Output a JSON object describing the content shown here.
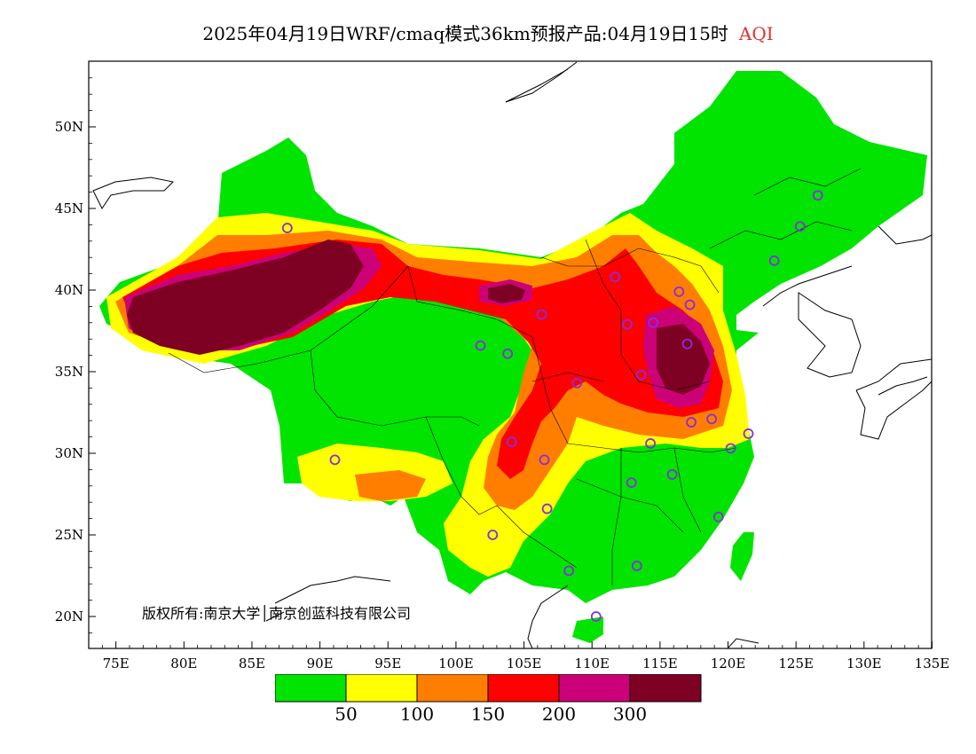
{
  "title": {
    "main": "2025年04月19日WRF/cmaq模式36km预报产品:04月19日15时",
    "variable": "AQI"
  },
  "axes": {
    "lat_labels": [
      "50N",
      "45N",
      "40N",
      "35N",
      "30N",
      "25N",
      "20N"
    ],
    "lon_labels": [
      "75E",
      "80E",
      "85E",
      "90E",
      "95E",
      "100E",
      "105E",
      "110E",
      "115E",
      "120E",
      "125E",
      "130E",
      "135E"
    ],
    "lon_range": [
      73,
      135
    ],
    "lat_range": [
      18,
      54
    ]
  },
  "copyright": "版权所有:南京大学│南京创蓝科技有限公司",
  "legend": {
    "colors": [
      "#00e400",
      "#ffff00",
      "#ff7e00",
      "#ff0000",
      "#cc0077",
      "#7e0023"
    ],
    "labels": [
      "50",
      "100",
      "150",
      "200",
      "300"
    ]
  },
  "stations": [
    [
      87.6,
      43.8
    ],
    [
      101.8,
      36.6
    ],
    [
      103.8,
      36.1
    ],
    [
      106.3,
      38.5
    ],
    [
      111.7,
      40.8
    ],
    [
      116.4,
      39.9
    ],
    [
      117.2,
      39.1
    ],
    [
      112.6,
      37.9
    ],
    [
      114.5,
      38.0
    ],
    [
      117.0,
      36.7
    ],
    [
      113.6,
      34.8
    ],
    [
      108.9,
      34.3
    ],
    [
      117.3,
      31.9
    ],
    [
      118.8,
      32.1
    ],
    [
      120.2,
      30.3
    ],
    [
      121.5,
      31.2
    ],
    [
      114.3,
      30.6
    ],
    [
      112.9,
      28.2
    ],
    [
      115.9,
      28.7
    ],
    [
      119.3,
      26.1
    ],
    [
      113.3,
      23.1
    ],
    [
      108.3,
      22.8
    ],
    [
      110.3,
      20.0
    ],
    [
      102.7,
      25.0
    ],
    [
      106.7,
      26.6
    ],
    [
      106.5,
      29.6
    ],
    [
      104.1,
      30.7
    ],
    [
      91.1,
      29.6
    ],
    [
      123.4,
      41.8
    ],
    [
      125.3,
      43.9
    ],
    [
      126.6,
      45.8
    ]
  ]
}
